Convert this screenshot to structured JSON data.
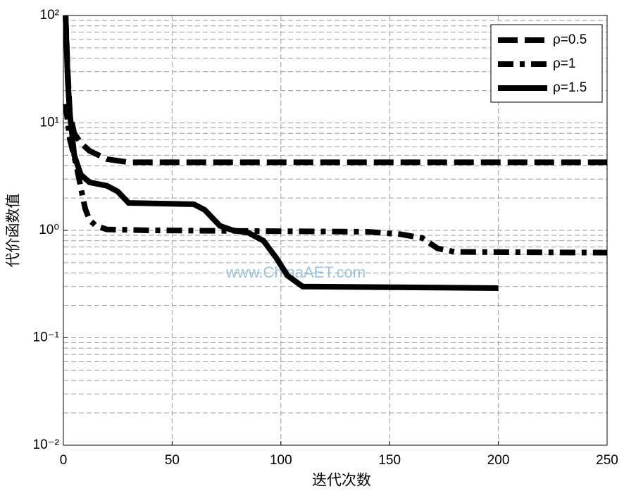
{
  "chart_data": {
    "type": "line",
    "xlabel": "迭代次数",
    "ylabel": "代价函数值",
    "annotation": "www.ChinaAET.com",
    "xlim": [
      0,
      250
    ],
    "xticks": [
      0,
      50,
      100,
      150,
      200,
      250
    ],
    "ylim": [
      0.01,
      100
    ],
    "yticks": [
      {
        "value": 0.01,
        "label": "10⁻²"
      },
      {
        "value": 0.1,
        "label": "10⁻¹"
      },
      {
        "value": 1,
        "label": "10⁰"
      },
      {
        "value": 10,
        "label": "10¹"
      },
      {
        "value": 100,
        "label": "10²"
      }
    ],
    "log_y": true,
    "grid": true,
    "legend": "upper right",
    "series": [
      {
        "name": "ρ=0.5",
        "color": "#000000",
        "dash": "28 10",
        "x": [
          1,
          2,
          3,
          5,
          8,
          12,
          20,
          30,
          250
        ],
        "values": [
          100,
          30,
          12,
          8,
          6.5,
          5.5,
          4.6,
          4.3,
          4.3
        ]
      },
      {
        "name": "ρ=1",
        "color": "#000000",
        "dash": "22 9 7 9",
        "x": [
          1,
          3,
          6,
          8,
          10,
          12,
          15,
          20,
          40,
          140,
          155,
          165,
          172,
          180,
          250
        ],
        "values": [
          15,
          7,
          4,
          2.5,
          1.6,
          1.25,
          1.1,
          1.02,
          1.0,
          0.97,
          0.92,
          0.85,
          0.68,
          0.63,
          0.62
        ]
      },
      {
        "name": "ρ=1.5",
        "color": "#000000",
        "dash": "",
        "x": [
          1,
          2,
          3,
          5,
          8,
          12,
          20,
          25,
          30,
          60,
          65,
          72,
          78,
          85,
          92,
          98,
          103,
          110,
          200
        ],
        "values": [
          100,
          25,
          12,
          5,
          3.3,
          2.8,
          2.6,
          2.3,
          1.8,
          1.75,
          1.55,
          1.1,
          1.0,
          0.95,
          0.8,
          0.55,
          0.38,
          0.3,
          0.29
        ]
      }
    ]
  }
}
